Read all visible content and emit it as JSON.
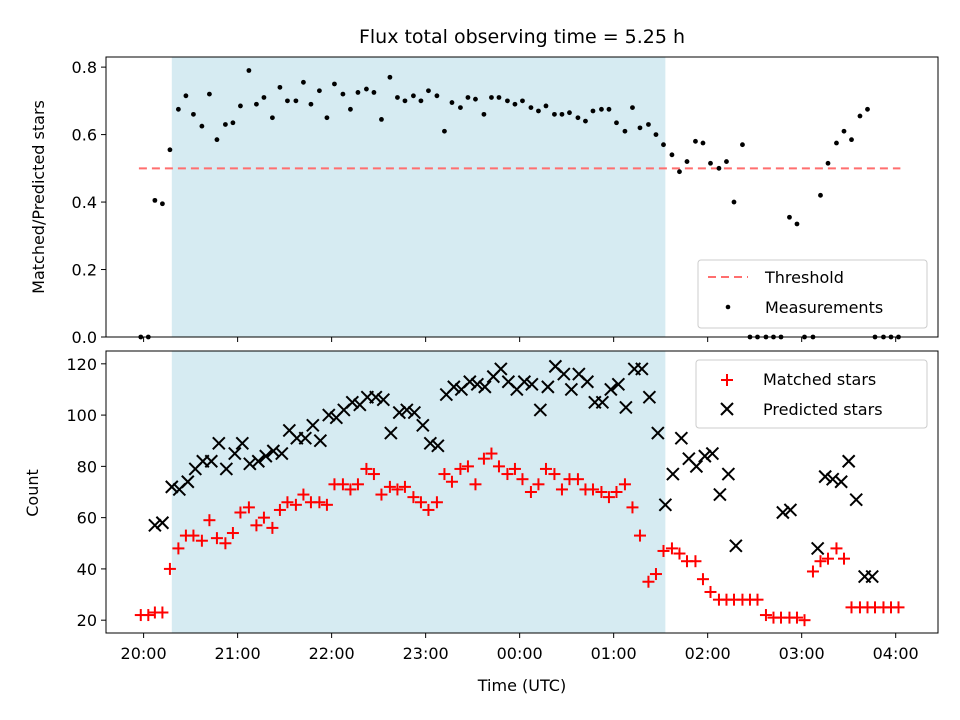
{
  "chart_data": {
    "title": "Flux total observing time = 5.25 h",
    "xlabel": "Time (UTC)",
    "x_ticks": [
      "20:00",
      "21:00",
      "22:00",
      "23:00",
      "00:00",
      "01:00",
      "02:00",
      "03:00",
      "04:00"
    ],
    "x_range_hours": [
      19.6,
      28.45
    ],
    "shaded_interval_hours": [
      20.3,
      25.55
    ],
    "shade_color": "#add8e6",
    "panels": [
      {
        "type": "scatter",
        "ylabel": "Matched/Predicted stars",
        "ylim": [
          0,
          0.83
        ],
        "y_ticks": [
          "0.0",
          "0.2",
          "0.4",
          "0.6",
          "0.8"
        ],
        "threshold": {
          "name": "Threshold",
          "y": 0.5,
          "x_range": [
            19.95,
            28.05
          ],
          "color": "#ff6e6e"
        },
        "legend": {
          "position": "lower-right",
          "entries": [
            "Threshold",
            "Measurements"
          ]
        },
        "series": [
          {
            "name": "Measurements",
            "color": "#000000",
            "x": [
              19.97,
              20.05,
              20.12,
              20.2,
              20.28,
              20.37,
              20.45,
              20.53,
              20.62,
              20.7,
              20.78,
              20.87,
              20.95,
              21.03,
              21.12,
              21.2,
              21.28,
              21.37,
              21.45,
              21.53,
              21.62,
              21.7,
              21.78,
              21.87,
              21.95,
              22.03,
              22.12,
              22.2,
              22.28,
              22.37,
              22.45,
              22.53,
              22.62,
              22.7,
              22.78,
              22.87,
              22.95,
              23.03,
              23.12,
              23.2,
              23.28,
              23.37,
              23.45,
              23.53,
              23.62,
              23.7,
              23.78,
              23.87,
              23.95,
              24.03,
              24.12,
              24.2,
              24.28,
              24.37,
              24.45,
              24.53,
              24.62,
              24.7,
              24.78,
              24.87,
              24.95,
              25.03,
              25.12,
              25.2,
              25.28,
              25.37,
              25.45,
              25.53,
              25.62,
              25.7,
              25.78,
              25.87,
              25.95,
              26.03,
              26.12,
              26.2,
              26.28,
              26.37,
              26.45,
              26.53,
              26.62,
              26.7,
              26.78,
              26.87,
              26.95,
              27.03,
              27.12,
              27.2,
              27.28,
              27.37,
              27.45,
              27.53,
              27.62,
              27.7,
              27.78,
              27.87,
              27.95,
              28.03
            ],
            "y": [
              0.0,
              0.0,
              0.405,
              0.395,
              0.555,
              0.675,
              0.715,
              0.66,
              0.625,
              0.72,
              0.585,
              0.63,
              0.635,
              0.685,
              0.79,
              0.69,
              0.71,
              0.65,
              0.74,
              0.7,
              0.7,
              0.755,
              0.69,
              0.73,
              0.65,
              0.75,
              0.72,
              0.675,
              0.725,
              0.735,
              0.725,
              0.645,
              0.77,
              0.71,
              0.7,
              0.715,
              0.7,
              0.73,
              0.715,
              0.61,
              0.695,
              0.68,
              0.71,
              0.705,
              0.66,
              0.71,
              0.71,
              0.7,
              0.69,
              0.7,
              0.68,
              0.67,
              0.685,
              0.66,
              0.66,
              0.665,
              0.65,
              0.64,
              0.67,
              0.675,
              0.675,
              0.635,
              0.61,
              0.68,
              0.62,
              0.63,
              0.6,
              0.57,
              0.54,
              0.49,
              0.52,
              0.58,
              0.575,
              0.515,
              0.5,
              0.52,
              0.4,
              0.57,
              0.0,
              0.0,
              0.0,
              0.0,
              0.0,
              0.355,
              0.335,
              0.0,
              0.0,
              0.42,
              0.515,
              0.575,
              0.61,
              0.585,
              0.655,
              0.675,
              0.0,
              0.0,
              0.0,
              0.0
            ]
          }
        ]
      },
      {
        "type": "scatter",
        "ylabel": "Count",
        "ylim": [
          15,
          125
        ],
        "y_ticks": [
          "20",
          "40",
          "60",
          "80",
          "100",
          "120"
        ],
        "legend": {
          "position": "top-right",
          "entries": [
            "Matched stars",
            "Predicted stars"
          ]
        },
        "series": [
          {
            "name": "Matched stars",
            "marker": "plus",
            "color": "#ff0000",
            "x": [
              19.97,
              20.05,
              20.12,
              20.2,
              20.28,
              20.37,
              20.45,
              20.53,
              20.62,
              20.7,
              20.78,
              20.87,
              20.95,
              21.03,
              21.12,
              21.2,
              21.28,
              21.37,
              21.45,
              21.53,
              21.62,
              21.7,
              21.78,
              21.87,
              21.95,
              22.03,
              22.12,
              22.2,
              22.28,
              22.37,
              22.45,
              22.53,
              22.62,
              22.7,
              22.78,
              22.87,
              22.95,
              23.03,
              23.12,
              23.2,
              23.28,
              23.37,
              23.45,
              23.53,
              23.62,
              23.7,
              23.78,
              23.87,
              23.95,
              24.03,
              24.12,
              24.2,
              24.28,
              24.37,
              24.45,
              24.53,
              24.62,
              24.7,
              24.78,
              24.87,
              24.95,
              25.03,
              25.12,
              25.2,
              25.28,
              25.37,
              25.45,
              25.53,
              25.62,
              25.7,
              25.78,
              25.87,
              25.95,
              26.03,
              26.12,
              26.2,
              26.28,
              26.37,
              26.45,
              26.53,
              26.62,
              26.7,
              26.78,
              26.87,
              26.95,
              27.03,
              27.12,
              27.2,
              27.28,
              27.37,
              27.45,
              27.53,
              27.62,
              27.7,
              27.78,
              27.87,
              27.95,
              28.03
            ],
            "y": [
              22,
              22,
              23,
              23,
              40,
              48,
              53,
              53,
              51,
              59,
              52,
              50,
              54,
              62,
              64,
              57,
              60,
              56,
              63,
              66,
              65,
              69,
              66,
              66,
              65,
              73,
              73,
              71,
              73,
              79,
              77,
              69,
              72,
              71,
              72,
              68,
              66,
              63,
              66,
              77,
              74,
              79,
              80,
              73,
              83,
              85,
              80,
              77,
              79,
              75,
              70,
              73,
              79,
              77,
              71,
              75,
              75,
              71,
              71,
              70,
              68,
              70,
              73,
              64,
              53,
              35,
              38,
              47,
              48,
              46,
              43,
              43,
              36,
              31,
              28,
              28,
              28,
              28,
              28,
              28,
              22,
              21,
              21,
              21,
              21,
              20,
              39,
              43,
              44,
              48,
              44,
              25,
              25,
              25,
              25,
              25,
              25,
              25
            ]
          },
          {
            "name": "Predicted stars",
            "marker": "x",
            "color": "#000000",
            "x": [
              20.12,
              20.2,
              20.3,
              20.38,
              20.47,
              20.55,
              20.63,
              20.72,
              20.8,
              20.88,
              20.97,
              21.05,
              21.13,
              21.22,
              21.3,
              21.38,
              21.47,
              21.55,
              21.63,
              21.72,
              21.8,
              21.88,
              21.97,
              22.05,
              22.13,
              22.22,
              22.3,
              22.38,
              22.47,
              22.55,
              22.63,
              22.72,
              22.8,
              22.88,
              22.97,
              23.05,
              23.13,
              23.22,
              23.3,
              23.38,
              23.47,
              23.55,
              23.63,
              23.72,
              23.8,
              23.88,
              23.97,
              24.05,
              24.13,
              24.22,
              24.3,
              24.38,
              24.47,
              24.55,
              24.63,
              24.72,
              24.8,
              24.88,
              24.97,
              25.05,
              25.13,
              25.22,
              25.3,
              25.38,
              25.47,
              25.55,
              25.63,
              25.72,
              25.8,
              25.88,
              25.97,
              26.05,
              26.13,
              26.22,
              26.3,
              26.8,
              26.88,
              27.17,
              27.25,
              27.33,
              27.42,
              27.5,
              27.58,
              27.67,
              27.75
            ],
            "y": [
              57,
              58,
              72,
              71,
              74,
              79,
              82,
              82,
              89,
              79,
              85,
              89,
              81,
              82,
              84,
              86,
              85,
              94,
              91,
              91,
              96,
              90,
              100,
              99,
              102,
              105,
              104,
              107,
              107,
              106,
              93,
              101,
              102,
              101,
              96,
              89,
              88,
              108,
              111,
              110,
              113,
              112,
              111,
              115,
              118,
              113,
              110,
              113,
              112,
              102,
              111,
              119,
              116,
              110,
              116,
              113,
              105,
              105,
              110,
              112,
              103,
              118,
              118,
              107,
              93,
              65,
              77,
              91,
              83,
              80,
              84,
              85,
              69,
              77,
              49,
              62,
              63,
              48,
              76,
              75,
              74,
              82,
              67,
              37,
              37
            ]
          }
        ]
      }
    ]
  }
}
